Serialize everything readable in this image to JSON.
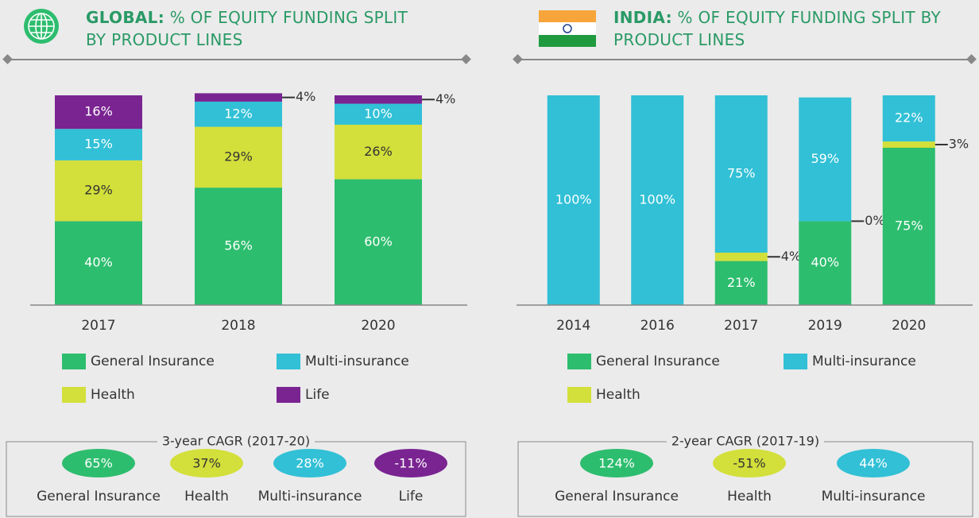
{
  "chart_data": [
    {
      "type": "stacked_bar",
      "title_bold": "GLOBAL:",
      "title": "% OF EQUITY FUNDING SPLIT BY PRODUCT LINES",
      "categories": [
        "2017",
        "2018",
        "2020"
      ],
      "ylim": [
        0,
        100
      ],
      "series": [
        {
          "name": "General Insurance",
          "color": "#2dbd6e",
          "values": [
            40,
            56,
            60
          ],
          "value_labels": [
            "40%",
            "56%",
            "60%"
          ]
        },
        {
          "name": "Health",
          "color": "#d3df3a",
          "values": [
            29,
            29,
            26
          ],
          "value_labels": [
            "29%",
            "29%",
            "26%"
          ]
        },
        {
          "name": "Multi-insurance",
          "color": "#31c0d6",
          "values": [
            15,
            12,
            10
          ],
          "value_labels": [
            "15%",
            "12%",
            "10%"
          ]
        },
        {
          "name": "Life",
          "color": "#7a2492",
          "values": [
            16,
            4,
            4
          ],
          "value_labels": [
            "16%",
            "4%",
            "4%"
          ]
        }
      ],
      "cagr": {
        "title": "3-year CAGR (2017-20)",
        "items": [
          {
            "label": "General Insurance",
            "value": 65,
            "value_label": "65%",
            "color": "#2dbd6e"
          },
          {
            "label": "Health",
            "value": 37,
            "value_label": "37%",
            "color": "#d3df3a"
          },
          {
            "label": "Multi-insurance",
            "value": 28,
            "value_label": "28%",
            "color": "#31c0d6"
          },
          {
            "label": "Life",
            "value": -11,
            "value_label": "-11%",
            "color": "#7a2492"
          }
        ]
      }
    },
    {
      "type": "stacked_bar",
      "title_bold": "INDIA:",
      "title": "% OF EQUITY FUNDING SPLIT BY PRODUCT LINES",
      "categories": [
        "2014",
        "2016",
        "2017",
        "2019",
        "2020"
      ],
      "ylim": [
        0,
        100
      ],
      "series": [
        {
          "name": "General Insurance",
          "color": "#2dbd6e",
          "values": [
            0,
            0,
            21,
            40,
            75
          ],
          "value_labels": [
            null,
            null,
            "21%",
            "40%",
            "75%"
          ]
        },
        {
          "name": "Health",
          "color": "#d3df3a",
          "values": [
            0,
            0,
            4,
            0,
            3
          ],
          "value_labels": [
            null,
            null,
            "4%",
            "0%",
            "3%"
          ]
        },
        {
          "name": "Multi-insurance",
          "color": "#31c0d6",
          "values": [
            100,
            100,
            75,
            59,
            22
          ],
          "value_labels": [
            "100%",
            "100%",
            "75%",
            "59%",
            "22%"
          ]
        }
      ],
      "cagr": {
        "title": "2-year CAGR (2017-19)",
        "items": [
          {
            "label": "General Insurance",
            "value": 124,
            "value_label": "124%",
            "color": "#2dbd6e"
          },
          {
            "label": "Health",
            "value": -51,
            "value_label": "-51%",
            "color": "#d3df3a"
          },
          {
            "label": "Multi-insurance",
            "value": 44,
            "value_label": "44%",
            "color": "#31c0d6"
          }
        ]
      }
    }
  ]
}
